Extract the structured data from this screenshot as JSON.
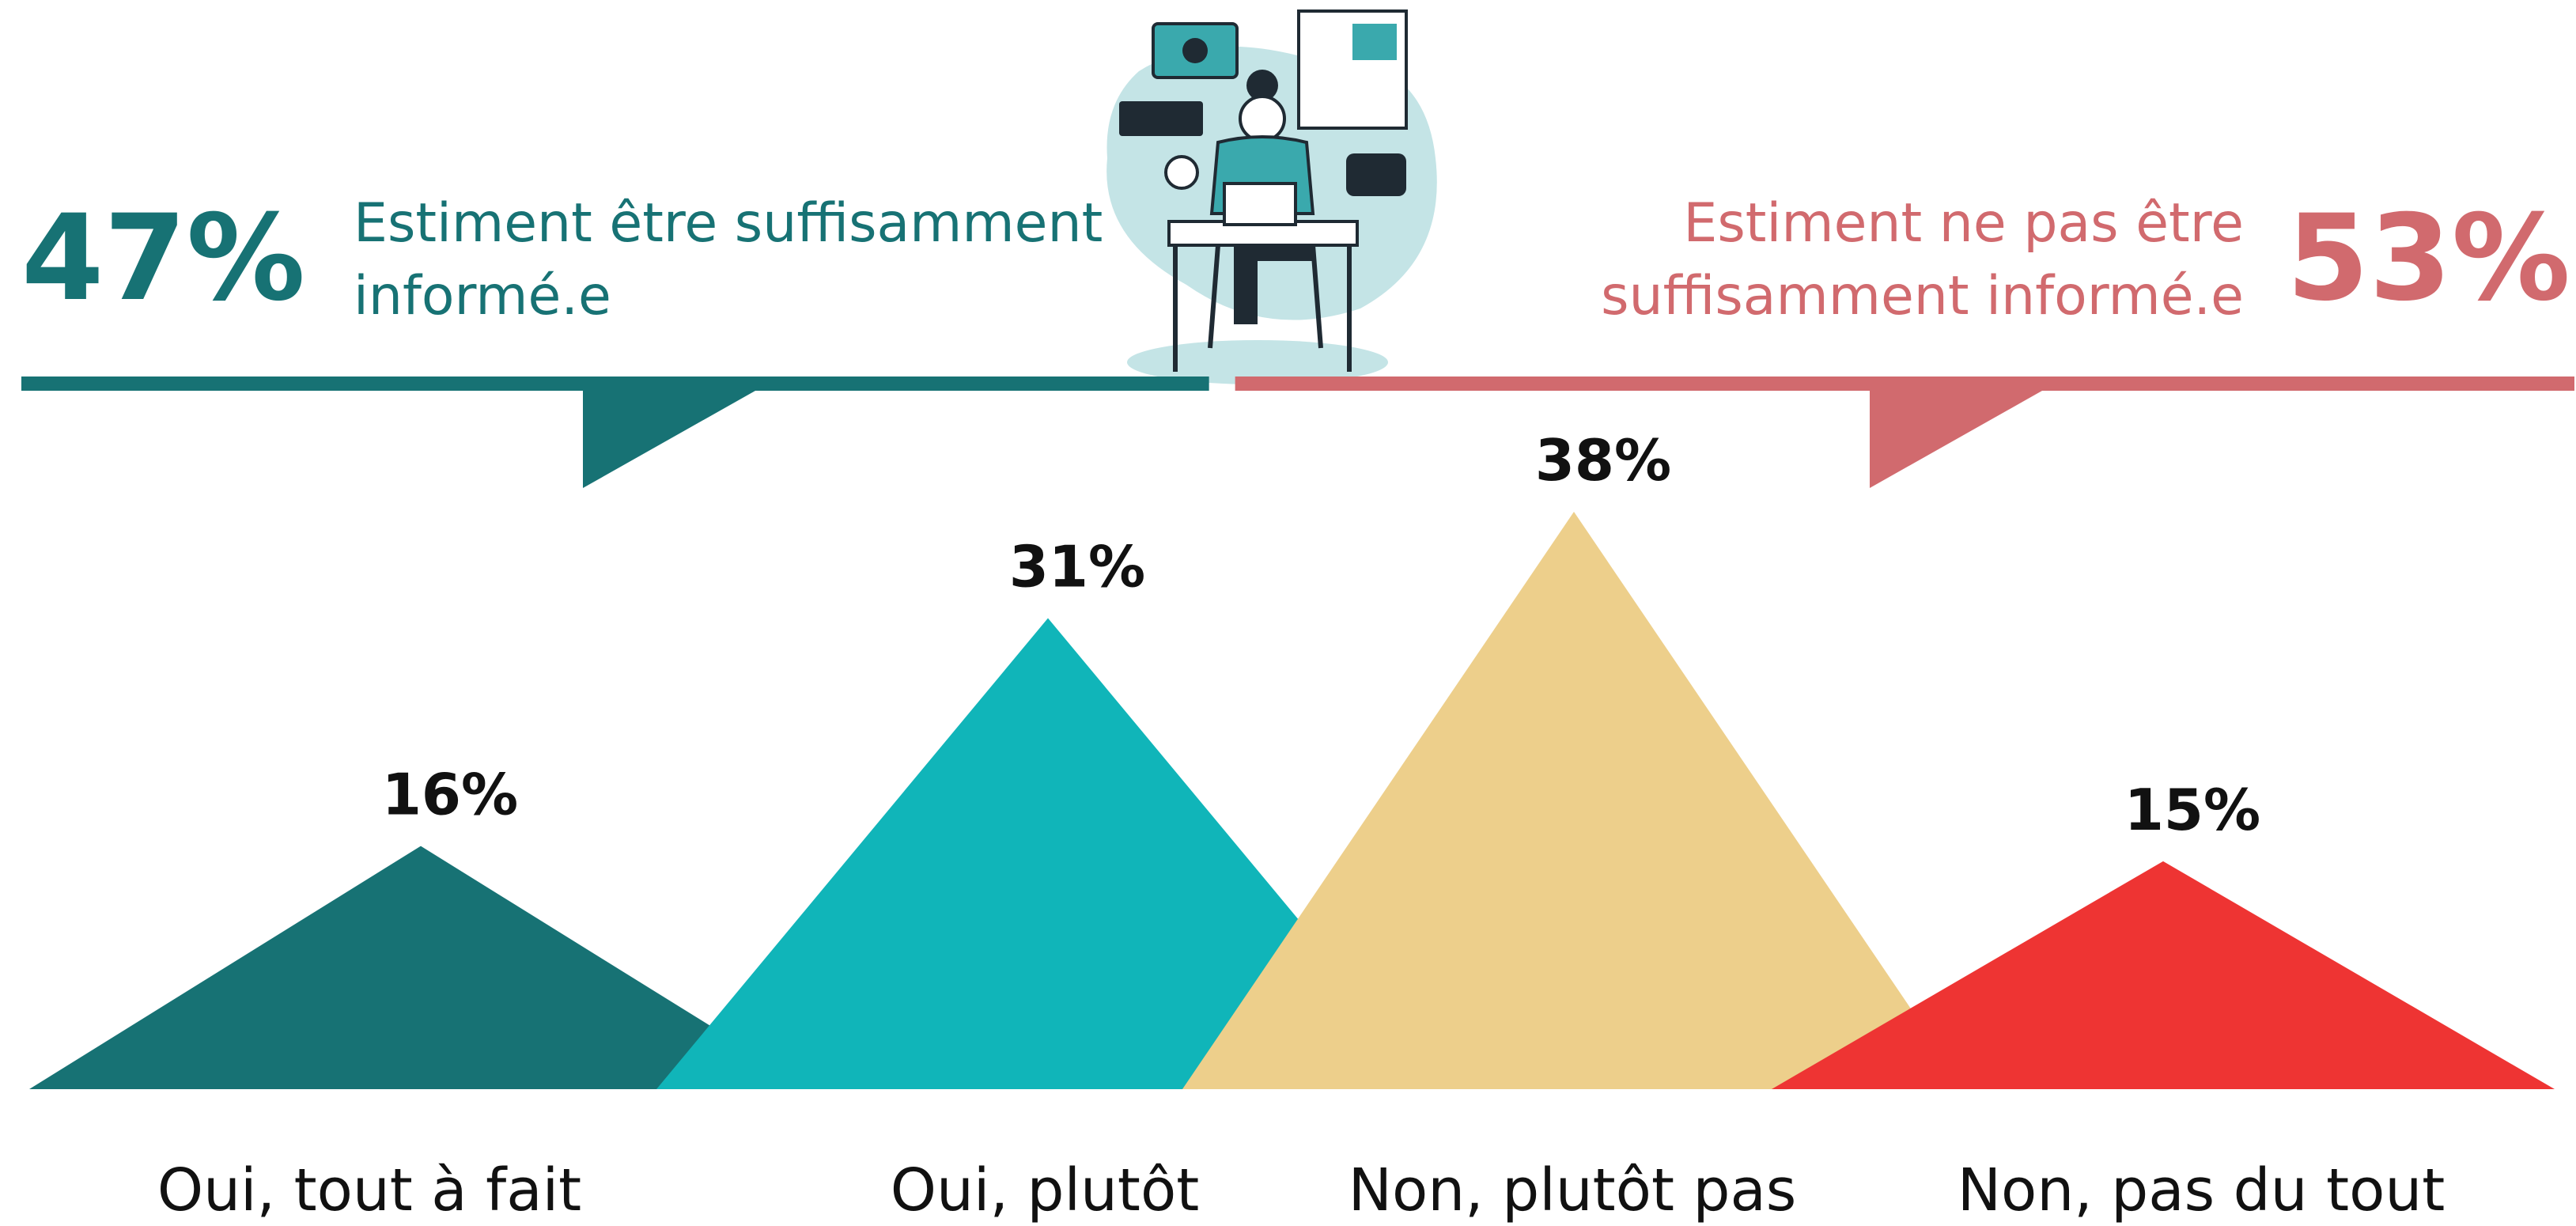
{
  "chart_data": {
    "type": "triangle",
    "categories": [
      "Oui, tout à fait",
      "Oui, plutôt",
      "Non, plutôt pas",
      "Non, pas du tout"
    ],
    "values": [
      16,
      31,
      38,
      15
    ],
    "value_labels": [
      "16%",
      "31%",
      "38%",
      "15%"
    ],
    "colors": [
      "#177274",
      "#10b5b9",
      "#edcf8b",
      "#ee3433"
    ],
    "summary": [
      {
        "value": 47,
        "label": "47%",
        "text_lines": [
          "Estiment être suffisamment",
          "informé.e"
        ],
        "color": "#177274"
      },
      {
        "value": 53,
        "label": "53%",
        "text_lines": [
          "Estiment ne pas être",
          "suffisamment informé.e"
        ],
        "color": "#d16a6e"
      }
    ]
  }
}
